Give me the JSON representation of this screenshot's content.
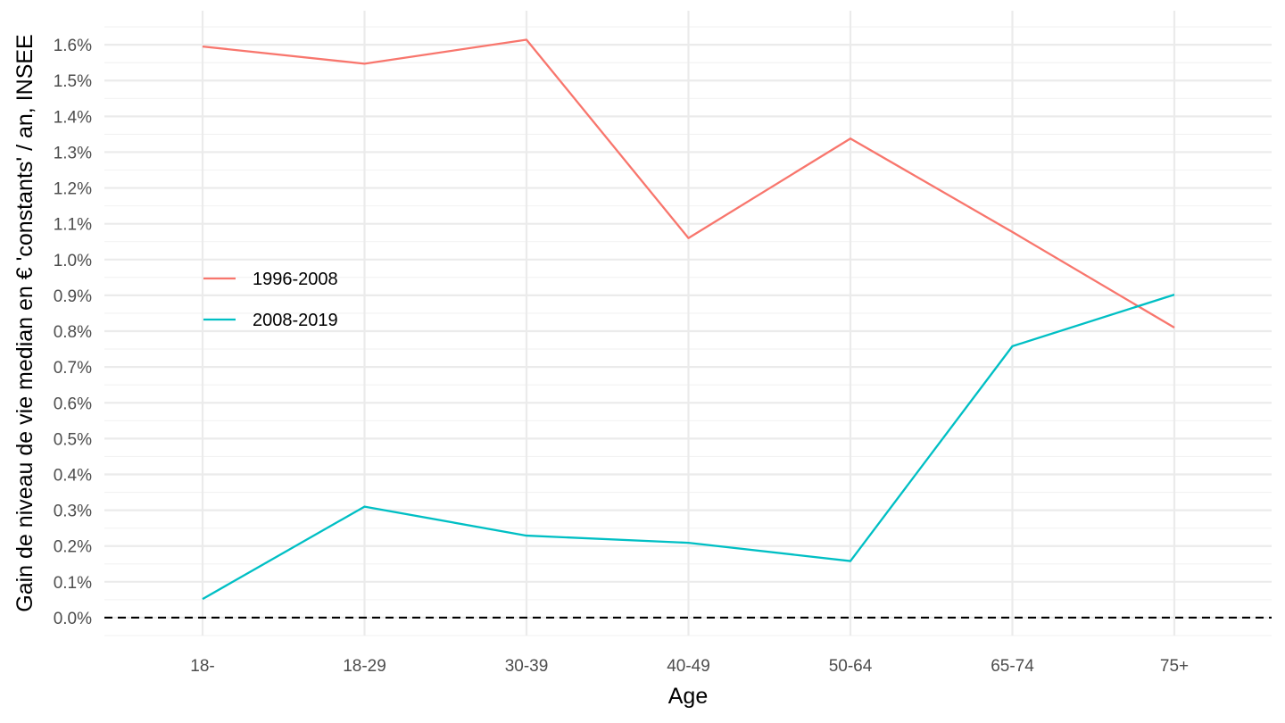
{
  "chart_data": {
    "type": "line",
    "title": "",
    "xlabel": "Age",
    "ylabel": "Gain de niveau de vie median en € 'constants' / an, INSEE",
    "categories": [
      "18-",
      "18-29",
      "30-39",
      "40-49",
      "50-64",
      "65-74",
      "75+"
    ],
    "y_ticks": [
      "0.0%",
      "0.1%",
      "0.2%",
      "0.3%",
      "0.4%",
      "0.5%",
      "0.6%",
      "0.7%",
      "0.8%",
      "0.9%",
      "1.0%",
      "1.1%",
      "1.2%",
      "1.3%",
      "1.4%",
      "1.5%",
      "1.6%"
    ],
    "y_tick_values": [
      0.0,
      0.1,
      0.2,
      0.3,
      0.4,
      0.5,
      0.6,
      0.7,
      0.8,
      0.9,
      1.0,
      1.1,
      1.2,
      1.3,
      1.4,
      1.5,
      1.6
    ],
    "ylim": [
      -0.05,
      1.695
    ],
    "unit": "%",
    "grid": true,
    "reference_line": {
      "y": 0.0,
      "style": "dashed",
      "color": "#000000"
    },
    "legend": {
      "position": "left-inside"
    },
    "series": [
      {
        "name": "1996-2008",
        "color": "#F8766D",
        "values": [
          1.595,
          1.547,
          1.614,
          1.06,
          1.338,
          1.077,
          0.81
        ]
      },
      {
        "name": "2008-2019",
        "color": "#00BFC4",
        "values": [
          0.052,
          0.31,
          0.229,
          0.209,
          0.158,
          0.758,
          0.902
        ]
      }
    ]
  }
}
